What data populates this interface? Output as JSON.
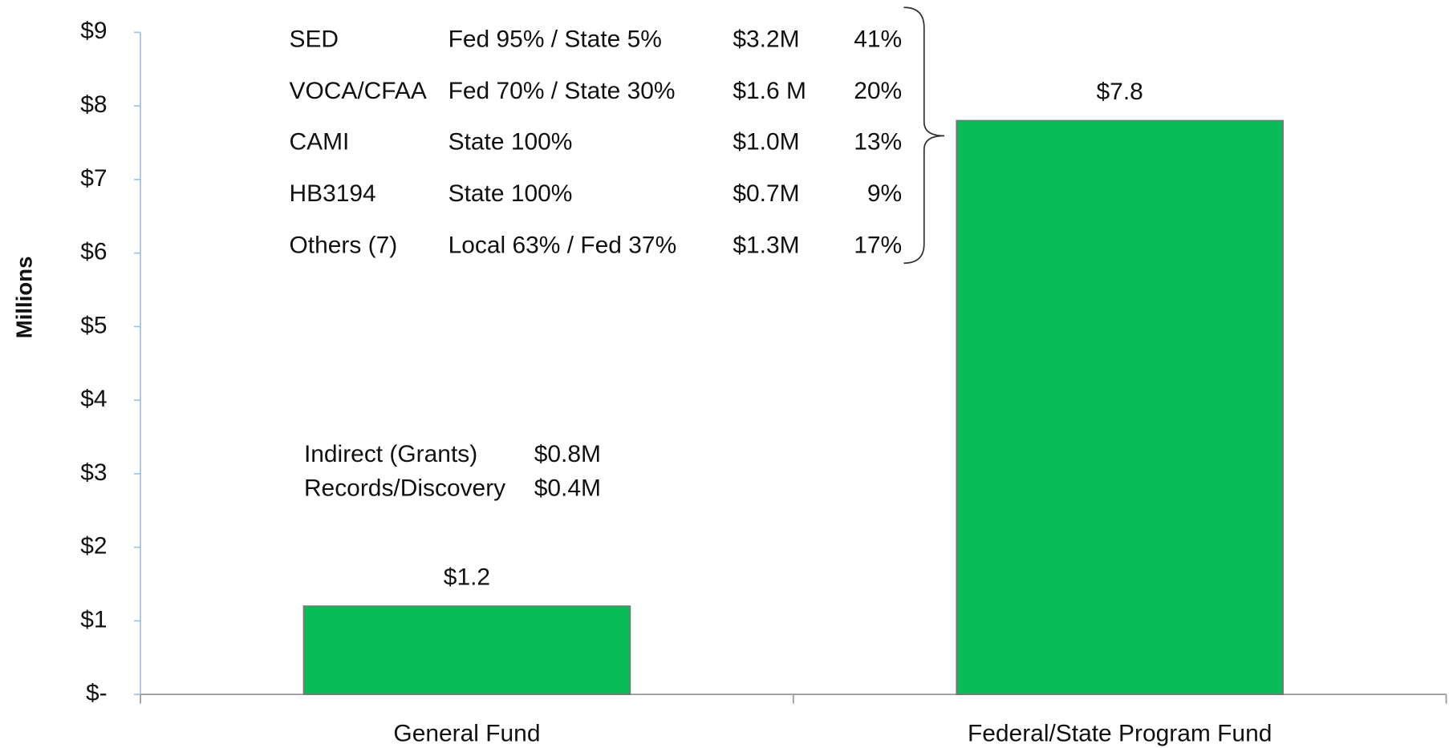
{
  "chart_data": {
    "type": "bar",
    "y_label": "Millions",
    "categories": [
      "General Fund",
      "Federal/State Program Fund"
    ],
    "values": [
      1.2,
      7.8
    ],
    "value_labels": [
      "$1.2",
      "$7.8"
    ],
    "color": "#08bd57",
    "ylim": [
      0,
      9
    ],
    "yticks": [
      {
        "value": 0,
        "label": "$-"
      },
      {
        "value": 1,
        "label": "$1"
      },
      {
        "value": 2,
        "label": "$2"
      },
      {
        "value": 3,
        "label": "$3"
      },
      {
        "value": 4,
        "label": "$4"
      },
      {
        "value": 5,
        "label": "$5"
      },
      {
        "value": 6,
        "label": "$6"
      },
      {
        "value": 7,
        "label": "$7"
      },
      {
        "value": 8,
        "label": "$8"
      },
      {
        "value": 9,
        "label": "$9"
      }
    ],
    "program_table": [
      {
        "program": "SED",
        "split": "Fed 95% / State 5%",
        "amount": "$3.2M",
        "share": "41%"
      },
      {
        "program": "VOCA/CFAA",
        "split": "Fed 70% / State 30%",
        "amount": "$1.6 M",
        "share": "20%"
      },
      {
        "program": "CAMI",
        "split": "State 100%",
        "amount": "$1.0M",
        "share": "13%"
      },
      {
        "program": "HB3194",
        "split": "State 100%",
        "amount": "$0.7M",
        "share": "9%"
      },
      {
        "program": "Others (7)",
        "split": "Local 63% / Fed 37%",
        "amount": "$1.3M",
        "share": "17%"
      }
    ],
    "general_fund_notes": [
      {
        "label": "Indirect (Grants)",
        "amount": "$0.8M"
      },
      {
        "label": "Records/Discovery",
        "amount": "$0.4M"
      }
    ]
  }
}
